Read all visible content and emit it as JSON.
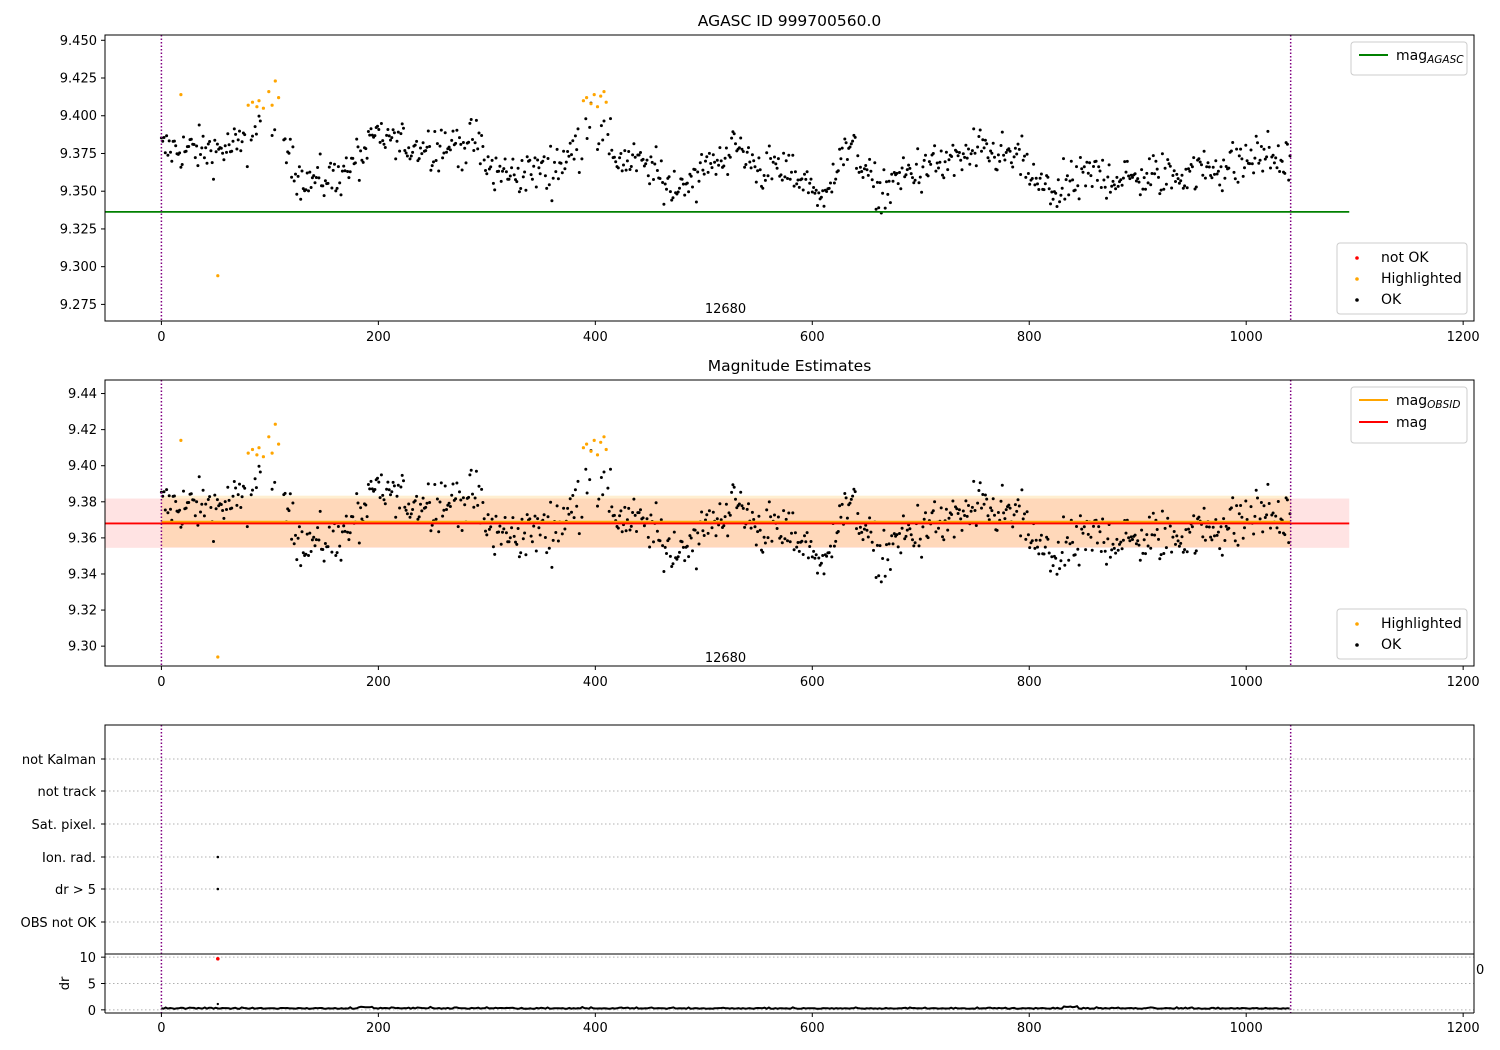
{
  "chart_data": [
    {
      "type": "scatter",
      "title": "AGASC ID 999700560.0",
      "xlim": [
        -52,
        1210
      ],
      "ylim": [
        9.264,
        9.4535
      ],
      "xticks": [
        0,
        200,
        400,
        600,
        800,
        1000,
        1200
      ],
      "yticks": [
        9.275,
        9.3,
        9.325,
        9.35,
        9.375,
        9.4,
        9.425,
        9.45
      ],
      "ytick_labels": [
        "9.275",
        "9.300",
        "9.325",
        "9.350",
        "9.375",
        "9.400",
        "9.425",
        "9.450"
      ],
      "obsid_boundaries": [
        0,
        1041
      ],
      "annotation": {
        "text": "12680",
        "x": 520,
        "y": 9.272
      },
      "mag_agasc": {
        "value": 9.3363,
        "x_range": [
          -52,
          1095
        ],
        "color": "#008000"
      },
      "legend_top": [
        {
          "label": "mag",
          "sub": "AGASC",
          "color": "#008000"
        }
      ],
      "legend_bottom": [
        {
          "label": "not OK",
          "color": "#ff0000"
        },
        {
          "label": "Highlighted",
          "color": "#ffa500"
        },
        {
          "label": "OK",
          "color": "#000000"
        }
      ],
      "highlighted_points": [
        [
          18,
          9.414
        ],
        [
          52,
          9.294
        ],
        [
          80,
          9.407
        ],
        [
          84,
          9.409
        ],
        [
          88,
          9.406
        ],
        [
          90,
          9.41
        ],
        [
          94,
          9.405
        ],
        [
          99,
          9.416
        ],
        [
          102,
          9.407
        ],
        [
          105,
          9.423
        ],
        [
          108,
          9.412
        ],
        [
          389,
          9.41
        ],
        [
          392,
          9.412
        ],
        [
          396,
          9.408
        ],
        [
          399,
          9.414
        ],
        [
          402,
          9.406
        ],
        [
          405,
          9.413
        ],
        [
          408,
          9.416
        ],
        [
          410,
          9.409
        ]
      ]
    },
    {
      "type": "scatter",
      "title": "Magnitude Estimates",
      "xlim": [
        -52,
        1210
      ],
      "ylim": [
        9.289,
        9.4475
      ],
      "xticks": [
        0,
        200,
        400,
        600,
        800,
        1000,
        1200
      ],
      "yticks": [
        9.3,
        9.32,
        9.34,
        9.36,
        9.38,
        9.4,
        9.42,
        9.44
      ],
      "ytick_labels": [
        "9.30",
        "9.32",
        "9.34",
        "9.36",
        "9.38",
        "9.40",
        "9.42",
        "9.44"
      ],
      "obsid_boundaries": [
        0,
        1041
      ],
      "annotation": {
        "text": "12680",
        "x": 520,
        "y": 9.2935
      },
      "mag": {
        "value": 9.368,
        "x_range": [
          -52,
          1095
        ],
        "band": [
          9.3545,
          9.3818
        ],
        "color": "#ff0000"
      },
      "mag_obsid": {
        "value": 9.369,
        "x_range": [
          0,
          1041
        ],
        "band": [
          9.3548,
          9.3834
        ],
        "color": "#ffa500"
      },
      "legend_top": [
        {
          "label": "mag",
          "sub": "OBSID",
          "color": "#ffa500"
        },
        {
          "label": "mag",
          "sub": "",
          "color": "#ff0000"
        }
      ],
      "legend_bottom": [
        {
          "label": "Highlighted",
          "color": "#ffa500"
        },
        {
          "label": "OK",
          "color": "#000000"
        }
      ]
    },
    {
      "type": "scatter",
      "xlim": [
        -52,
        1210
      ],
      "flags": [
        "not Kalman",
        "not track",
        "Sat. pixel.",
        "Ion. rad.",
        "dr > 5",
        "OBS not OK"
      ],
      "flag_points": [
        {
          "flag": "Ion. rad.",
          "x": 52
        },
        {
          "flag": "dr > 5",
          "x": 52
        }
      ],
      "obsid_boundaries": [
        0,
        1041
      ],
      "xticks": [
        0,
        200,
        400,
        600,
        800,
        1000,
        1200
      ],
      "dr_panel": {
        "ylabel": "dr",
        "ylim": [
          -0.6,
          10.6
        ],
        "yticks": [
          0,
          5,
          10
        ],
        "ytick_labels": [
          "0",
          "5",
          "10"
        ],
        "outlier": {
          "x": 52,
          "y": 9.7,
          "color": "#ff0000"
        },
        "spike": {
          "x": 52,
          "y": 1.1
        },
        "clipped_tick_label": "0"
      }
    }
  ]
}
